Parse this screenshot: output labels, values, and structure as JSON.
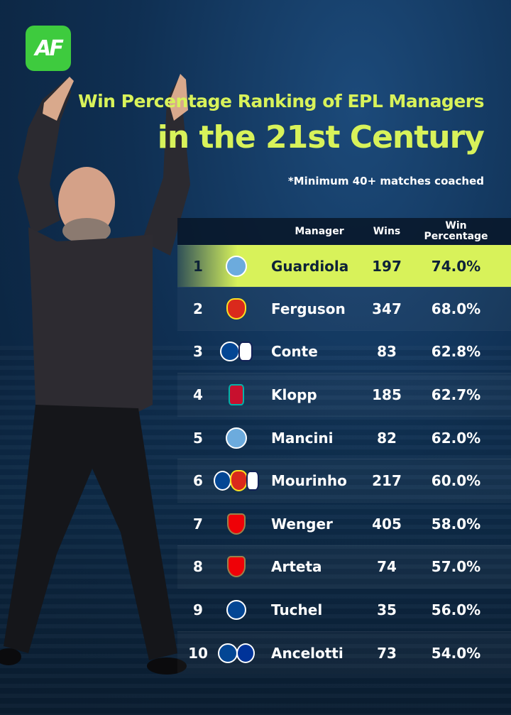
{
  "brand": {
    "logo_text": "AF",
    "color": "#3ecb3e"
  },
  "header": {
    "title_line1": "Win Percentage Ranking of EPL Managers",
    "title_line2": "in the 21st Century",
    "note": "*Minimum 40+ matches coached",
    "accent": "#d8f25a"
  },
  "table": {
    "columns": {
      "manager": "Manager",
      "wins": "Wins",
      "pct_line1": "Win",
      "pct_line2": "Percentage"
    },
    "rows": [
      {
        "rank": "1",
        "name": "Guardiola",
        "wins": "197",
        "pct": "74.0%",
        "crests": [
          "mci"
        ]
      },
      {
        "rank": "2",
        "name": "Ferguson",
        "wins": "347",
        "pct": "68.0%",
        "crests": [
          "mun"
        ]
      },
      {
        "rank": "3",
        "name": "Conte",
        "wins": "83",
        "pct": "62.8%",
        "crests": [
          "che",
          "tot"
        ]
      },
      {
        "rank": "4",
        "name": "Klopp",
        "wins": "185",
        "pct": "62.7%",
        "crests": [
          "liv"
        ]
      },
      {
        "rank": "5",
        "name": "Mancini",
        "wins": "82",
        "pct": "62.0%",
        "crests": [
          "mci"
        ]
      },
      {
        "rank": "6",
        "name": "Mourinho",
        "wins": "217",
        "pct": "60.0%",
        "crests": [
          "che",
          "mun",
          "tot"
        ]
      },
      {
        "rank": "7",
        "name": "Wenger",
        "wins": "405",
        "pct": "58.0%",
        "crests": [
          "ars"
        ]
      },
      {
        "rank": "8",
        "name": "Arteta",
        "wins": "74",
        "pct": "57.0%",
        "crests": [
          "ars"
        ]
      },
      {
        "rank": "9",
        "name": "Tuchel",
        "wins": "35",
        "pct": "56.0%",
        "crests": [
          "che"
        ]
      },
      {
        "rank": "10",
        "name": "Ancelotti",
        "wins": "73",
        "pct": "54.0%",
        "crests": [
          "che",
          "eve"
        ]
      }
    ]
  }
}
